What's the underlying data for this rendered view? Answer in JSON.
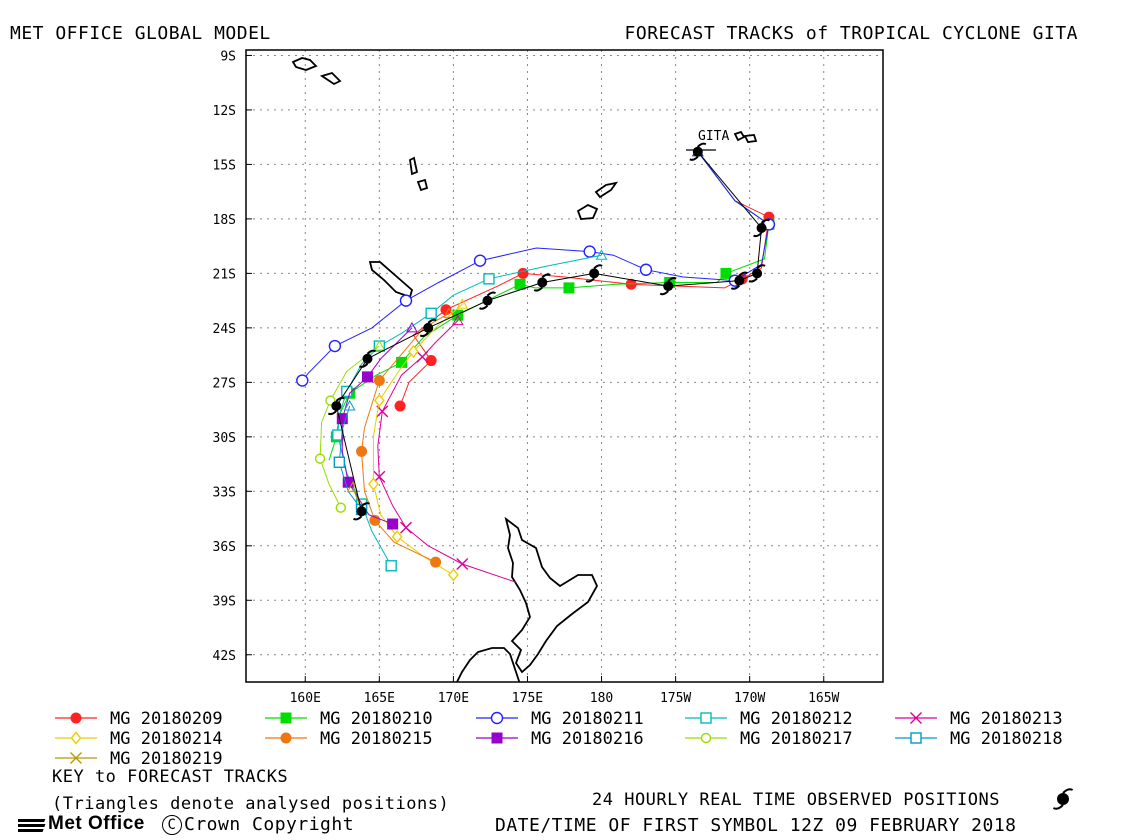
{
  "header": {
    "left_title": "MET OFFICE GLOBAL MODEL",
    "right_title": "FORECAST TRACKS of TROPICAL CYCLONE GITA"
  },
  "chart_data": {
    "type": "line",
    "title": "FORECAST TRACKS of TROPICAL CYCLONE GITA",
    "x_ticks": [
      "160E",
      "165E",
      "170E",
      "175E",
      "180",
      "175W",
      "170W",
      "165W"
    ],
    "y_ticks": [
      "9S",
      "12S",
      "15S",
      "18S",
      "21S",
      "24S",
      "27S",
      "30S",
      "33S",
      "36S",
      "39S",
      "42S"
    ],
    "xlim": [
      156,
      199
    ],
    "ylim": [
      -43.5,
      -8.7
    ],
    "grid": true,
    "storm_label": "GITA",
    "series": [
      {
        "name": "MG 20180209",
        "color": "#ff2222",
        "marker": "dot",
        "points": [
          [
            186.5,
            -14.3
          ],
          [
            189.0,
            -17.0
          ],
          [
            191.3,
            -17.9
          ],
          [
            190.8,
            -20.7
          ],
          [
            189.5,
            -21.3
          ],
          [
            188.3,
            -21.8
          ],
          [
            182.0,
            -21.6
          ],
          [
            177.5,
            -21.2
          ],
          [
            174.7,
            -21.0
          ],
          [
            173.0,
            -21.7
          ],
          [
            169.5,
            -23.0
          ],
          [
            167.3,
            -24.4
          ],
          [
            168.5,
            -25.8
          ],
          [
            167.0,
            -27.0
          ],
          [
            166.4,
            -28.3
          ]
        ]
      },
      {
        "name": "MG 20180210",
        "color": "#00dd00",
        "marker": "square",
        "points": [
          [
            186.5,
            -14.3
          ],
          [
            189.0,
            -17.0
          ],
          [
            191.3,
            -18.3
          ],
          [
            191.0,
            -20.2
          ],
          [
            188.4,
            -21.0
          ],
          [
            187.8,
            -21.5
          ],
          [
            184.6,
            -21.5
          ],
          [
            181.0,
            -21.6
          ],
          [
            177.8,
            -21.8
          ],
          [
            175.5,
            -21.8
          ],
          [
            174.5,
            -21.6
          ],
          [
            173.0,
            -22.2
          ],
          [
            170.3,
            -23.3
          ],
          [
            168.0,
            -24.5
          ],
          [
            166.5,
            -25.9
          ],
          [
            164.8,
            -26.6
          ],
          [
            163.0,
            -27.6
          ],
          [
            162.3,
            -28.8
          ],
          [
            162.1,
            -30.0
          ],
          [
            161.6,
            -31.3
          ]
        ]
      },
      {
        "name": "MG 20180211",
        "color": "#2222ff",
        "marker": "circle",
        "points": [
          [
            186.5,
            -14.3
          ],
          [
            189.0,
            -17.0
          ],
          [
            191.3,
            -18.3
          ],
          [
            190.8,
            -20.5
          ],
          [
            189.0,
            -21.4
          ],
          [
            185.5,
            -21.2
          ],
          [
            183.0,
            -20.8
          ],
          [
            180.8,
            -20.0
          ],
          [
            179.2,
            -19.8
          ],
          [
            175.6,
            -19.6
          ],
          [
            171.8,
            -20.3
          ],
          [
            169.0,
            -21.5
          ],
          [
            166.8,
            -22.5
          ],
          [
            164.5,
            -24.0
          ],
          [
            162.0,
            -25.0
          ],
          [
            160.2,
            -26.5
          ],
          [
            159.8,
            -26.9
          ]
        ]
      },
      {
        "name": "MG 20180212",
        "color": "#00bbbb",
        "marker": "square-open",
        "points": [
          [
            180.0,
            -20.0
          ],
          [
            176.3,
            -20.6
          ],
          [
            172.4,
            -21.3
          ],
          [
            170.0,
            -22.2
          ],
          [
            168.5,
            -23.2
          ],
          [
            166.5,
            -24.3
          ],
          [
            165.0,
            -25.0
          ],
          [
            163.8,
            -26.0
          ],
          [
            162.8,
            -27.5
          ],
          [
            162.3,
            -28.8
          ],
          [
            162.2,
            -29.9
          ],
          [
            162.8,
            -32.0
          ],
          [
            163.8,
            -33.7
          ],
          [
            164.5,
            -35.2
          ],
          [
            165.8,
            -37.1
          ]
        ]
      },
      {
        "name": "MG 20180213",
        "color": "#dd0099",
        "marker": "x",
        "points": [
          [
            170.3,
            -23.6
          ],
          [
            168.8,
            -24.8
          ],
          [
            167.9,
            -25.6
          ],
          [
            166.5,
            -26.6
          ],
          [
            165.2,
            -28.6
          ],
          [
            164.9,
            -30.5
          ],
          [
            165.0,
            -32.2
          ],
          [
            165.9,
            -33.8
          ],
          [
            166.8,
            -35.0
          ],
          [
            168.3,
            -36.0
          ],
          [
            170.6,
            -37.0
          ],
          [
            174.2,
            -38.0
          ]
        ]
      },
      {
        "name": "MG 20180214",
        "color": "#eecc00",
        "marker": "diamond",
        "points": [
          [
            170.6,
            -22.7
          ],
          [
            168.8,
            -24.0
          ],
          [
            167.3,
            -25.3
          ],
          [
            166.3,
            -26.4
          ],
          [
            165.0,
            -28.0
          ],
          [
            164.6,
            -30.0
          ],
          [
            164.6,
            -32.6
          ],
          [
            165.1,
            -34.3
          ],
          [
            166.2,
            -35.5
          ],
          [
            168.0,
            -36.6
          ],
          [
            170.0,
            -37.6
          ]
        ]
      },
      {
        "name": "MG 20180215",
        "color": "#ee7711",
        "marker": "dot",
        "points": [
          [
            169.7,
            -23.2
          ],
          [
            168.0,
            -24.0
          ],
          [
            165.0,
            -26.9
          ],
          [
            164.0,
            -29.5
          ],
          [
            163.8,
            -30.8
          ],
          [
            164.0,
            -33.0
          ],
          [
            164.7,
            -34.6
          ],
          [
            166.0,
            -35.8
          ],
          [
            168.8,
            -36.9
          ]
        ]
      },
      {
        "name": "MG 20180216",
        "color": "#9900cc",
        "marker": "square",
        "points": [
          [
            167.2,
            -24.0
          ],
          [
            165.1,
            -25.7
          ],
          [
            164.2,
            -26.7
          ],
          [
            163.0,
            -27.6
          ],
          [
            162.5,
            -29.0
          ],
          [
            162.5,
            -30.8
          ],
          [
            162.9,
            -32.5
          ],
          [
            164.3,
            -34.3
          ],
          [
            165.9,
            -34.8
          ]
        ]
      },
      {
        "name": "MG 20180217",
        "color": "#99dd00",
        "marker": "circle-open",
        "points": [
          [
            165.0,
            -25.0
          ],
          [
            162.8,
            -26.4
          ],
          [
            161.7,
            -28.0
          ],
          [
            161.1,
            -29.2
          ],
          [
            161.0,
            -31.2
          ],
          [
            161.6,
            -32.6
          ],
          [
            162.4,
            -33.9
          ]
        ]
      },
      {
        "name": "MG 20180218",
        "color": "#0099cc",
        "marker": "square-open",
        "points": [
          [
            163.0,
            -28.3
          ],
          [
            162.5,
            -29.6
          ],
          [
            162.3,
            -31.4
          ],
          [
            162.9,
            -33.0
          ],
          [
            163.8,
            -34.0
          ]
        ]
      },
      {
        "name": "MG 20180219",
        "color": "#bb9900",
        "marker": "x",
        "points": [
          [
            163.2,
            -32.8
          ],
          [
            163.8,
            -34.0
          ]
        ]
      }
    ],
    "observed": {
      "name": "24 HOURLY REAL TIME OBSERVED POSITIONS",
      "color": "#000000",
      "points": [
        [
          186.5,
          -14.3
        ],
        [
          190.8,
          -18.5
        ],
        [
          190.5,
          -21.0
        ],
        [
          189.3,
          -21.4
        ],
        [
          184.5,
          -21.7
        ],
        [
          179.5,
          -21.0
        ],
        [
          176.0,
          -21.5
        ],
        [
          172.3,
          -22.5
        ],
        [
          168.3,
          -24.0
        ],
        [
          164.2,
          -25.7
        ],
        [
          162.1,
          -28.3
        ],
        [
          163.8,
          -34.1
        ]
      ]
    }
  },
  "legend": {
    "key_title": "KEY to FORECAST TRACKS",
    "key_note": "(Triangles denote analysed positions)",
    "observed_label": "24 HOURLY REAL TIME OBSERVED POSITIONS",
    "date_label": "DATE/TIME OF FIRST SYMBOL 12Z 09 FEBRUARY 2018"
  },
  "footer": {
    "logo_text": "Met Office",
    "copyright_text": "Crown Copyright"
  }
}
